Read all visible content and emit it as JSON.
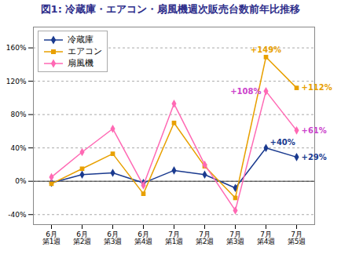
{
  "chart_data": {
    "type": "line",
    "title": "図1: 冷蔵庫・エアコン・扇風機週次販売台数前年比推移",
    "title_color": "#2e2e8b",
    "categories": [
      "6月\n第1週",
      "6月\n第2週",
      "6月\n第3週",
      "6月\n第4週",
      "7月\n第1週",
      "7月\n第2週",
      "7月\n第3週",
      "7月\n第4週",
      "7月\n第5週"
    ],
    "series": [
      {
        "name": "冷蔵庫",
        "color": "#1a3a8f",
        "marker": "diamond",
        "values": [
          -2,
          8,
          10,
          -2,
          13,
          8,
          -8,
          40,
          29
        ]
      },
      {
        "name": "エアコン",
        "color": "#e8a000",
        "marker": "square",
        "values": [
          -3,
          15,
          33,
          -15,
          70,
          18,
          -20,
          149,
          112
        ]
      },
      {
        "name": "扇風機",
        "color": "#ff69b4",
        "marker": "diamond",
        "values": [
          5,
          35,
          63,
          -5,
          93,
          20,
          -35,
          108,
          61
        ]
      }
    ],
    "annotations": [
      {
        "text": "+149%",
        "x": "7月\n第4週",
        "y": 149,
        "color": "#e8a000"
      },
      {
        "text": "+112%",
        "x": "7月\n第5週",
        "y": 112,
        "color": "#e8a000"
      },
      {
        "text": "+108%",
        "x": "7月\n第4週",
        "y": 108,
        "color": "#cc44cc"
      },
      {
        "text": "+61%",
        "x": "7月\n第5週",
        "y": 61,
        "color": "#cc44cc"
      },
      {
        "text": "+40%",
        "x": "7月\n第4週",
        "y": 40,
        "color": "#1a3a8f"
      },
      {
        "text": "+29%",
        "x": "7月\n第5週",
        "y": 29,
        "color": "#1a3a8f"
      }
    ],
    "ylim": [
      -52,
      185
    ],
    "yticks": [
      {
        "value": -40,
        "label": "-40%"
      },
      {
        "value": 0,
        "label": "0%"
      },
      {
        "value": 40,
        "label": "40%"
      },
      {
        "value": 80,
        "label": "80%"
      },
      {
        "value": 120,
        "label": "120%"
      },
      {
        "value": 160,
        "label": "160%"
      }
    ],
    "grid": true,
    "legend": "upper left"
  }
}
